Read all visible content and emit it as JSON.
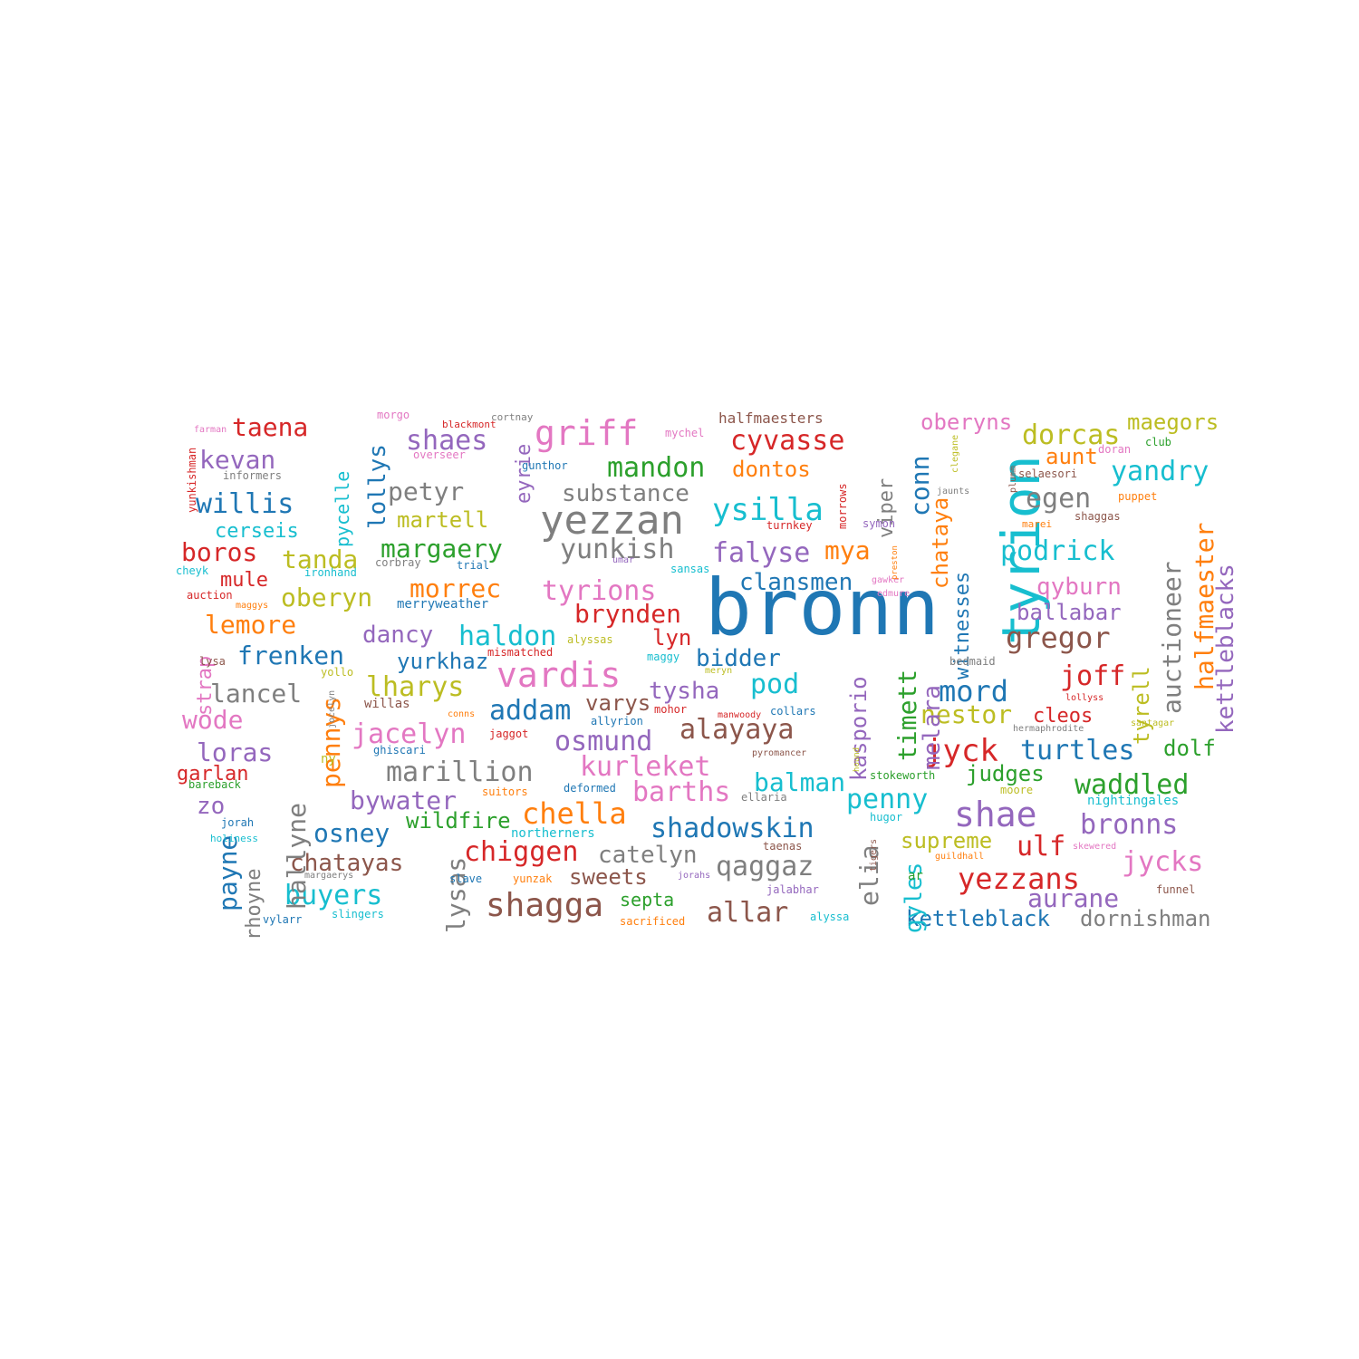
{
  "palette": {
    "blue": "#1f77b4",
    "orange": "#ff7f0e",
    "green": "#2ca02c",
    "red": "#d62728",
    "purple": "#9467bd",
    "brown": "#8c564b",
    "pink": "#e377c2",
    "gray": "#7f7f7f",
    "olive": "#bcbd22",
    "cyan": "#17becf"
  },
  "words": [
    {
      "text": "bronn",
      "color": "blue"
    },
    {
      "text": "tyrion",
      "color": "cyan"
    },
    {
      "text": "yezzan",
      "color": "gray"
    },
    {
      "text": "vardis",
      "color": "pink"
    },
    {
      "text": "griff",
      "color": "pink"
    },
    {
      "text": "shae",
      "color": "purple"
    },
    {
      "text": "shagga",
      "color": "brown"
    },
    {
      "text": "yezzans",
      "color": "red"
    },
    {
      "text": "taena",
      "color": "red"
    },
    {
      "text": "kevan",
      "color": "purple"
    },
    {
      "text": "willis",
      "color": "blue"
    },
    {
      "text": "cerseis",
      "color": "cyan"
    },
    {
      "text": "boros",
      "color": "red"
    },
    {
      "text": "mule",
      "color": "red"
    },
    {
      "text": "lemore",
      "color": "orange"
    },
    {
      "text": "frenken",
      "color": "blue"
    },
    {
      "text": "lancel",
      "color": "gray"
    },
    {
      "text": "wode",
      "color": "pink"
    },
    {
      "text": "loras",
      "color": "purple"
    },
    {
      "text": "garlan",
      "color": "red"
    },
    {
      "text": "zo",
      "color": "purple"
    },
    {
      "text": "lollys",
      "color": "blue"
    },
    {
      "text": "pycelle",
      "color": "cyan"
    },
    {
      "text": "tanda",
      "color": "olive"
    },
    {
      "text": "oberyn",
      "color": "olive"
    },
    {
      "text": "petyr",
      "color": "gray"
    },
    {
      "text": "martell",
      "color": "olive"
    },
    {
      "text": "margaery",
      "color": "green"
    },
    {
      "text": "morrec",
      "color": "orange"
    },
    {
      "text": "dancy",
      "color": "purple"
    },
    {
      "text": "yurkhaz",
      "color": "blue"
    },
    {
      "text": "lharys",
      "color": "olive"
    },
    {
      "text": "haldon",
      "color": "cyan"
    },
    {
      "text": "jacelyn",
      "color": "pink"
    },
    {
      "text": "addam",
      "color": "blue"
    },
    {
      "text": "marillion",
      "color": "gray"
    },
    {
      "text": "bywater",
      "color": "purple"
    },
    {
      "text": "osney",
      "color": "blue"
    },
    {
      "text": "wildfire",
      "color": "green"
    },
    {
      "text": "chella",
      "color": "orange"
    },
    {
      "text": "chatayas",
      "color": "brown"
    },
    {
      "text": "buyers",
      "color": "cyan"
    },
    {
      "text": "chiggen",
      "color": "red"
    },
    {
      "text": "catelyn",
      "color": "gray"
    },
    {
      "text": "sweets",
      "color": "brown"
    },
    {
      "text": "septa",
      "color": "green"
    },
    {
      "text": "allar",
      "color": "brown"
    },
    {
      "text": "qaggaz",
      "color": "gray"
    },
    {
      "text": "shadowskin",
      "color": "blue"
    },
    {
      "text": "barths",
      "color": "pink"
    },
    {
      "text": "kurleket",
      "color": "pink"
    },
    {
      "text": "osmund",
      "color": "purple"
    },
    {
      "text": "alayaya",
      "color": "brown"
    },
    {
      "text": "varys",
      "color": "brown"
    },
    {
      "text": "tysha",
      "color": "purple"
    },
    {
      "text": "pod",
      "color": "cyan"
    },
    {
      "text": "bidder",
      "color": "blue"
    },
    {
      "text": "lyn",
      "color": "red"
    },
    {
      "text": "brynden",
      "color": "red"
    },
    {
      "text": "tyrions",
      "color": "pink"
    },
    {
      "text": "clansmen",
      "color": "blue"
    },
    {
      "text": "falyse",
      "color": "purple"
    },
    {
      "text": "mya",
      "color": "orange"
    },
    {
      "text": "ysilla",
      "color": "cyan"
    },
    {
      "text": "yunkish",
      "color": "gray"
    },
    {
      "text": "substance",
      "color": "gray"
    },
    {
      "text": "mandon",
      "color": "green"
    },
    {
      "text": "dontos",
      "color": "orange"
    },
    {
      "text": "cyvasse",
      "color": "red"
    },
    {
      "text": "shaes",
      "color": "purple"
    },
    {
      "text": "balman",
      "color": "cyan"
    },
    {
      "text": "penny",
      "color": "cyan"
    },
    {
      "text": "mord",
      "color": "blue"
    },
    {
      "text": "nestor",
      "color": "olive"
    },
    {
      "text": "jyck",
      "color": "red"
    },
    {
      "text": "turtles",
      "color": "blue"
    },
    {
      "text": "judges",
      "color": "green"
    },
    {
      "text": "waddled",
      "color": "green"
    },
    {
      "text": "bronns",
      "color": "purple"
    },
    {
      "text": "ulf",
      "color": "red"
    },
    {
      "text": "jycks",
      "color": "pink"
    },
    {
      "text": "aurane",
      "color": "purple"
    },
    {
      "text": "supreme",
      "color": "olive"
    },
    {
      "text": "kettleblack",
      "color": "blue"
    },
    {
      "text": "dornishman",
      "color": "gray"
    },
    {
      "text": "gregor",
      "color": "brown"
    },
    {
      "text": "joff",
      "color": "red"
    },
    {
      "text": "cleos",
      "color": "red"
    },
    {
      "text": "dolf",
      "color": "green"
    },
    {
      "text": "ballabar",
      "color": "purple"
    },
    {
      "text": "qyburn",
      "color": "pink"
    },
    {
      "text": "podrick",
      "color": "cyan"
    },
    {
      "text": "egen",
      "color": "gray"
    },
    {
      "text": "yandry",
      "color": "cyan"
    },
    {
      "text": "dorcas",
      "color": "olive"
    },
    {
      "text": "aunt",
      "color": "orange"
    },
    {
      "text": "oberyns",
      "color": "pink"
    },
    {
      "text": "maegors",
      "color": "olive"
    },
    {
      "text": "halfmaesters",
      "color": "brown"
    },
    {
      "text": "payne",
      "color": "blue"
    },
    {
      "text": "pennys",
      "color": "orange"
    },
    {
      "text": "hallyne",
      "color": "gray"
    },
    {
      "text": "rhoyne",
      "color": "gray"
    },
    {
      "text": "lysas",
      "color": "gray"
    },
    {
      "text": "strap",
      "color": "pink"
    },
    {
      "text": "eyrie",
      "color": "purple"
    },
    {
      "text": "kasporio",
      "color": "purple"
    },
    {
      "text": "elia",
      "color": "gray"
    },
    {
      "text": "gyles",
      "color": "cyan"
    },
    {
      "text": "timett",
      "color": "green"
    },
    {
      "text": "melara",
      "color": "purple"
    },
    {
      "text": "conn",
      "color": "blue"
    },
    {
      "text": "chataya",
      "color": "orange"
    },
    {
      "text": "viper",
      "color": "gray"
    },
    {
      "text": "witnesses",
      "color": "blue"
    },
    {
      "text": "auctioneer",
      "color": "gray"
    },
    {
      "text": "halfmaester",
      "color": "orange"
    },
    {
      "text": "kettleblacks",
      "color": "purple"
    },
    {
      "text": "tyrell",
      "color": "olive"
    },
    {
      "text": "morgo",
      "color": "pink"
    },
    {
      "text": "blackmont",
      "color": "red"
    },
    {
      "text": "cortnay",
      "color": "gray"
    },
    {
      "text": "mychel",
      "color": "pink"
    },
    {
      "text": "farman",
      "color": "pink"
    },
    {
      "text": "informers",
      "color": "gray"
    },
    {
      "text": "overseer",
      "color": "pink"
    },
    {
      "text": "gunthor",
      "color": "blue"
    },
    {
      "text": "selaesori",
      "color": "brown"
    },
    {
      "text": "doran",
      "color": "pink"
    },
    {
      "text": "club",
      "color": "green"
    },
    {
      "text": "puppet",
      "color": "orange"
    },
    {
      "text": "shaggas",
      "color": "brown"
    },
    {
      "text": "marei",
      "color": "orange"
    },
    {
      "text": "jaunts",
      "color": "gray"
    },
    {
      "text": "turnkey",
      "color": "red"
    },
    {
      "text": "symon",
      "color": "purple"
    },
    {
      "text": "cheyk",
      "color": "cyan"
    },
    {
      "text": "ironhand",
      "color": "cyan"
    },
    {
      "text": "corbray",
      "color": "gray"
    },
    {
      "text": "trial",
      "color": "blue"
    },
    {
      "text": "umar",
      "color": "purple"
    },
    {
      "text": "sansas",
      "color": "cyan"
    },
    {
      "text": "gawker",
      "color": "pink"
    },
    {
      "text": "edmure",
      "color": "pink"
    },
    {
      "text": "auction",
      "color": "red"
    },
    {
      "text": "maggys",
      "color": "orange"
    },
    {
      "text": "merryweather",
      "color": "blue"
    },
    {
      "text": "lysa",
      "color": "brown"
    },
    {
      "text": "alyssas",
      "color": "olive"
    },
    {
      "text": "mismatched",
      "color": "red"
    },
    {
      "text": "maggy",
      "color": "cyan"
    },
    {
      "text": "meryn",
      "color": "olive"
    },
    {
      "text": "bedmaid",
      "color": "gray"
    },
    {
      "text": "yollo",
      "color": "olive"
    },
    {
      "text": "willas",
      "color": "brown"
    },
    {
      "text": "conns",
      "color": "orange"
    },
    {
      "text": "mohor",
      "color": "red"
    },
    {
      "text": "manwoody",
      "color": "red"
    },
    {
      "text": "collars",
      "color": "blue"
    },
    {
      "text": "lollyss",
      "color": "red"
    },
    {
      "text": "allyrion",
      "color": "blue"
    },
    {
      "text": "hermaphrodite",
      "color": "gray"
    },
    {
      "text": "santagar",
      "color": "olive"
    },
    {
      "text": "jaggot",
      "color": "red"
    },
    {
      "text": "ghiscari",
      "color": "blue"
    },
    {
      "text": "ny",
      "color": "olive"
    },
    {
      "text": "pyromancer",
      "color": "brown"
    },
    {
      "text": "stokeworth",
      "color": "green"
    },
    {
      "text": "bareback",
      "color": "green"
    },
    {
      "text": "suitors",
      "color": "orange"
    },
    {
      "text": "deformed",
      "color": "blue"
    },
    {
      "text": "ellaria",
      "color": "gray"
    },
    {
      "text": "moore",
      "color": "olive"
    },
    {
      "text": "nightingales",
      "color": "cyan"
    },
    {
      "text": "jorah",
      "color": "blue"
    },
    {
      "text": "hugor",
      "color": "cyan"
    },
    {
      "text": "holiness",
      "color": "cyan"
    },
    {
      "text": "northerners",
      "color": "cyan"
    },
    {
      "text": "taenas",
      "color": "brown"
    },
    {
      "text": "skewered",
      "color": "pink"
    },
    {
      "text": "guildhall",
      "color": "orange"
    },
    {
      "text": "margaerys",
      "color": "gray"
    },
    {
      "text": "slave",
      "color": "blue"
    },
    {
      "text": "yunzak",
      "color": "orange"
    },
    {
      "text": "jorahs",
      "color": "purple"
    },
    {
      "text": "ar",
      "color": "green"
    },
    {
      "text": "jalabhar",
      "color": "purple"
    },
    {
      "text": "funnel",
      "color": "brown"
    },
    {
      "text": "vylarr",
      "color": "blue"
    },
    {
      "text": "slingers",
      "color": "cyan"
    },
    {
      "text": "sacrificed",
      "color": "orange"
    },
    {
      "text": "alyssa",
      "color": "cyan"
    },
    {
      "text": "yunkishman",
      "color": "red"
    },
    {
      "text": "jocelyn",
      "color": "gray"
    },
    {
      "text": "morrows",
      "color": "red"
    },
    {
      "text": "clegane",
      "color": "olive"
    },
    {
      "text": "plumm",
      "color": "brown"
    },
    {
      "text": "preston",
      "color": "orange"
    },
    {
      "text": "hound",
      "color": "olive"
    },
    {
      "text": "tigers",
      "color": "brown"
    }
  ]
}
